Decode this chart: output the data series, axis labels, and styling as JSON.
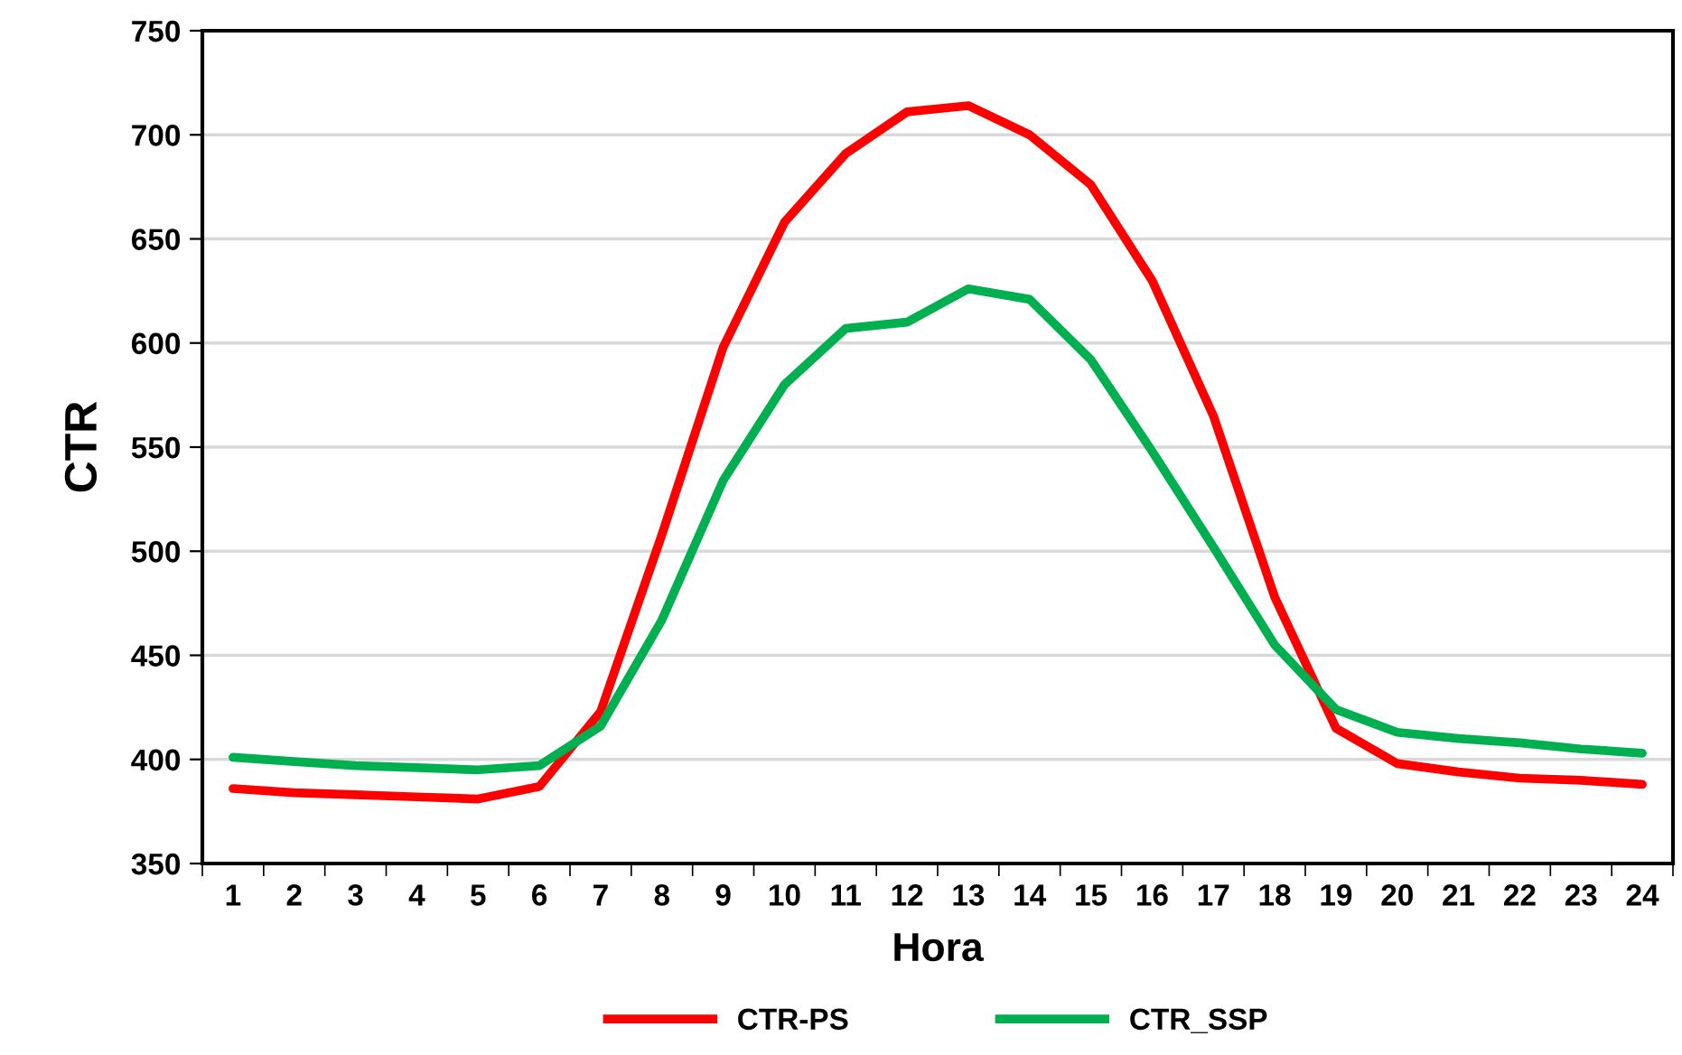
{
  "chart_data": {
    "type": "line",
    "xlabel": "Hora",
    "ylabel": "CTR",
    "categories": [
      "1",
      "2",
      "3",
      "4",
      "5",
      "6",
      "7",
      "8",
      "9",
      "10",
      "11",
      "12",
      "13",
      "14",
      "15",
      "16",
      "17",
      "18",
      "19",
      "20",
      "21",
      "22",
      "23",
      "24"
    ],
    "series": [
      {
        "name": "CTR-PS",
        "color": "#ff0000",
        "values": [
          386,
          384,
          383,
          382,
          381,
          387,
          423,
          508,
          598,
          658,
          691,
          711,
          714,
          700,
          676,
          630,
          565,
          478,
          415,
          398,
          394,
          391,
          390,
          388
        ]
      },
      {
        "name": "CTR_SSP",
        "color": "#00b050",
        "values": [
          401,
          399,
          397,
          396,
          395,
          397,
          416,
          467,
          534,
          580,
          607,
          610,
          626,
          621,
          592,
          548,
          502,
          455,
          424,
          413,
          410,
          408,
          405,
          403
        ]
      }
    ],
    "ylim": [
      350,
      750
    ],
    "yticks": [
      350,
      400,
      450,
      500,
      550,
      600,
      650,
      700,
      750
    ],
    "grid": "y",
    "legend": "bottom",
    "marker": "none",
    "line_style": "solid"
  }
}
